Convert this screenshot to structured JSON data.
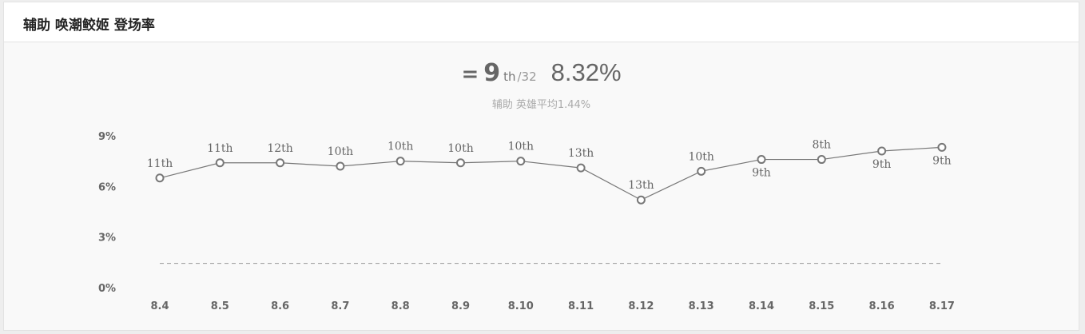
{
  "header": {
    "title": "辅助 唤潮鲛姬 登场率"
  },
  "summary": {
    "trend_symbol": "=",
    "rank": "9",
    "rank_suffix": "th",
    "rank_total": "/32",
    "rate": "8.32%",
    "avg_role": "辅助",
    "avg_text": "英雄平均1.44%"
  },
  "colors": {
    "line": "#777777",
    "marker_fill": "#ffffff",
    "average_line": "#999999",
    "text": "#666666"
  },
  "chart_data": {
    "type": "line",
    "categories": [
      "8.4",
      "8.5",
      "8.6",
      "8.7",
      "8.8",
      "8.9",
      "8.10",
      "8.11",
      "8.12",
      "8.13",
      "8.14",
      "8.15",
      "8.16",
      "8.17"
    ],
    "series": [
      {
        "values": [
          6.5,
          7.4,
          7.4,
          7.2,
          7.5,
          7.4,
          7.5,
          7.1,
          5.2,
          6.9,
          7.6,
          7.6,
          8.1,
          8.32
        ],
        "ranks": [
          "11th",
          "11th",
          "12th",
          "10th",
          "10th",
          "10th",
          "10th",
          "13th",
          "13th",
          "10th",
          "9th",
          "8th",
          "9th",
          "9th"
        ],
        "rank_label_position": [
          "above",
          "above",
          "above",
          "above",
          "above",
          "above",
          "above",
          "above",
          "above",
          "above",
          "below",
          "above",
          "below",
          "below"
        ]
      }
    ],
    "average": 1.44,
    "y_ticks": [
      "0%",
      "3%",
      "6%",
      "9%"
    ],
    "ylim": [
      0,
      9
    ],
    "grid": false,
    "legend": "none"
  }
}
